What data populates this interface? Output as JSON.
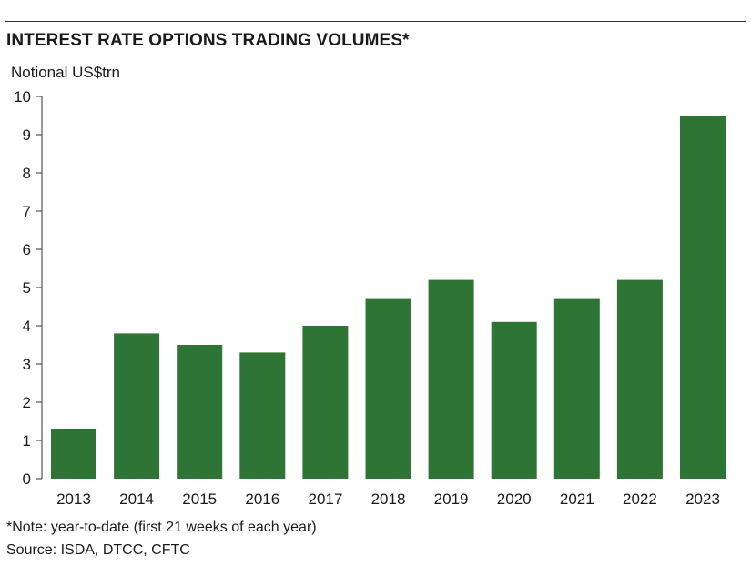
{
  "chart_data": {
    "type": "bar",
    "title": "INTEREST RATE OPTIONS TRADING VOLUMES*",
    "ylabel": "Notional US$trn",
    "xlabel": "",
    "categories": [
      "2013",
      "2014",
      "2015",
      "2016",
      "2017",
      "2018",
      "2019",
      "2020",
      "2021",
      "2022",
      "2023"
    ],
    "values": [
      1.3,
      3.8,
      3.5,
      3.3,
      4.0,
      4.7,
      5.2,
      4.1,
      4.7,
      5.2,
      9.5
    ],
    "ylim": [
      0,
      10
    ],
    "yticks": [
      0,
      1,
      2,
      3,
      4,
      5,
      6,
      7,
      8,
      9,
      10
    ],
    "bar_color": "#2e7535",
    "grid": false,
    "note": "*Note: year-to-date (first 21 weeks of each year)",
    "source": "Source: ISDA, DTCC, CFTC"
  }
}
